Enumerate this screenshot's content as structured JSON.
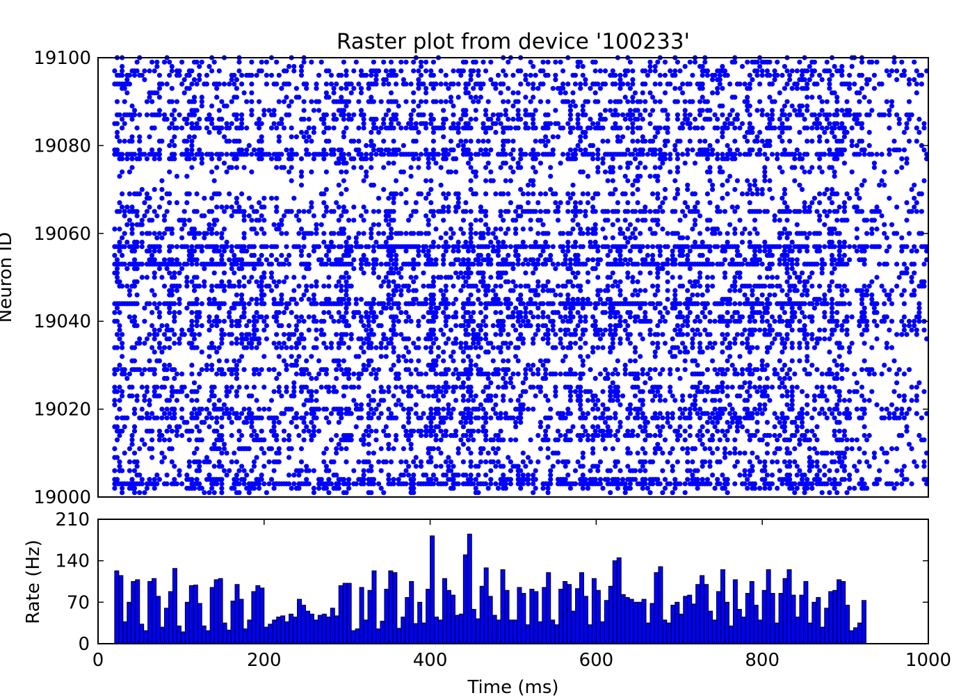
{
  "chart_data": [
    {
      "type": "scatter",
      "subtype": "raster",
      "title": "Raster plot from device '100233'",
      "xlabel": "",
      "ylabel": "Neuron ID",
      "xlim": [
        0,
        1000
      ],
      "ylim": [
        19000,
        19100
      ],
      "yticks": [
        19000,
        19020,
        19040,
        19060,
        19080,
        19100
      ],
      "marker_color": "#0000ff",
      "neuron_range": [
        19001,
        19100
      ],
      "time_range_ms": [
        20,
        1000
      ]
    },
    {
      "type": "bar",
      "subtype": "histogram",
      "title": "",
      "xlabel": "Time (ms)",
      "ylabel": "Rate (Hz)",
      "xlim": [
        0,
        1000
      ],
      "ylim": [
        0,
        210
      ],
      "xticks": [
        0,
        200,
        400,
        600,
        800,
        1000
      ],
      "yticks": [
        0,
        70,
        140,
        210
      ],
      "bar_color": "#0000ff",
      "bin_width_ms": 5,
      "bin_start_ms": 20,
      "values": [
        123,
        115,
        37,
        70,
        105,
        108,
        33,
        22,
        105,
        110,
        80,
        28,
        60,
        88,
        127,
        30,
        20,
        70,
        98,
        99,
        68,
        30,
        22,
        95,
        108,
        110,
        35,
        23,
        72,
        100,
        75,
        25,
        40,
        88,
        98,
        94,
        28,
        33,
        40,
        45,
        47,
        37,
        50,
        45,
        75,
        65,
        55,
        50,
        40,
        48,
        50,
        45,
        60,
        47,
        98,
        102,
        102,
        22,
        25,
        95,
        40,
        90,
        123,
        25,
        38,
        92,
        123,
        120,
        26,
        45,
        78,
        105,
        34,
        70,
        35,
        92,
        182,
        45,
        40,
        110,
        90,
        82,
        48,
        50,
        150,
        185,
        58,
        42,
        97,
        128,
        80,
        48,
        40,
        125,
        90,
        40,
        40,
        95,
        85,
        32,
        92,
        88,
        37,
        95,
        120,
        40,
        32,
        92,
        105,
        100,
        55,
        93,
        120,
        80,
        32,
        110,
        90,
        37,
        73,
        97,
        140,
        145,
        83,
        78,
        75,
        70,
        70,
        75,
        35,
        68,
        120,
        130,
        40,
        35,
        65,
        70,
        50,
        80,
        82,
        67,
        100,
        115,
        100,
        55,
        40,
        88,
        125,
        70,
        30,
        108,
        58,
        45,
        85,
        105,
        65,
        40,
        90,
        125,
        85,
        35,
        85,
        110,
        125,
        82,
        45,
        82,
        105,
        35,
        70,
        78,
        28,
        60,
        88,
        90,
        108,
        105,
        65,
        22,
        27,
        35,
        73
      ]
    }
  ]
}
